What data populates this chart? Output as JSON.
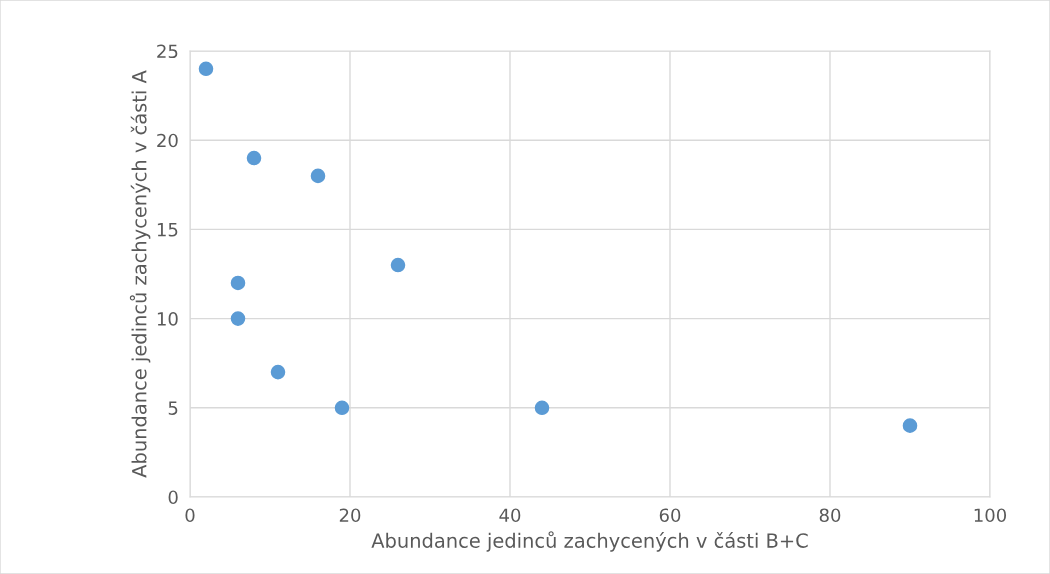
{
  "chart_data": {
    "type": "scatter",
    "xlabel": "Abundance jedinců zachycených v části B+C",
    "ylabel": "Abundance jedinců zachycených v části A",
    "x": [
      2,
      8,
      16,
      26,
      6,
      6,
      11,
      19,
      44,
      90
    ],
    "series": [
      {
        "color": "#5b9bd5",
        "values": [
          24,
          19,
          18,
          13,
          12,
          10,
          7,
          5,
          5,
          4
        ]
      }
    ],
    "xlim": [
      0,
      100
    ],
    "xticks": [
      0,
      20,
      40,
      60,
      80,
      100
    ],
    "ylim": [
      0,
      25
    ],
    "yticks": [
      0,
      5,
      10,
      15,
      20,
      25
    ],
    "grid": true,
    "marker": "circle",
    "legend": false
  }
}
